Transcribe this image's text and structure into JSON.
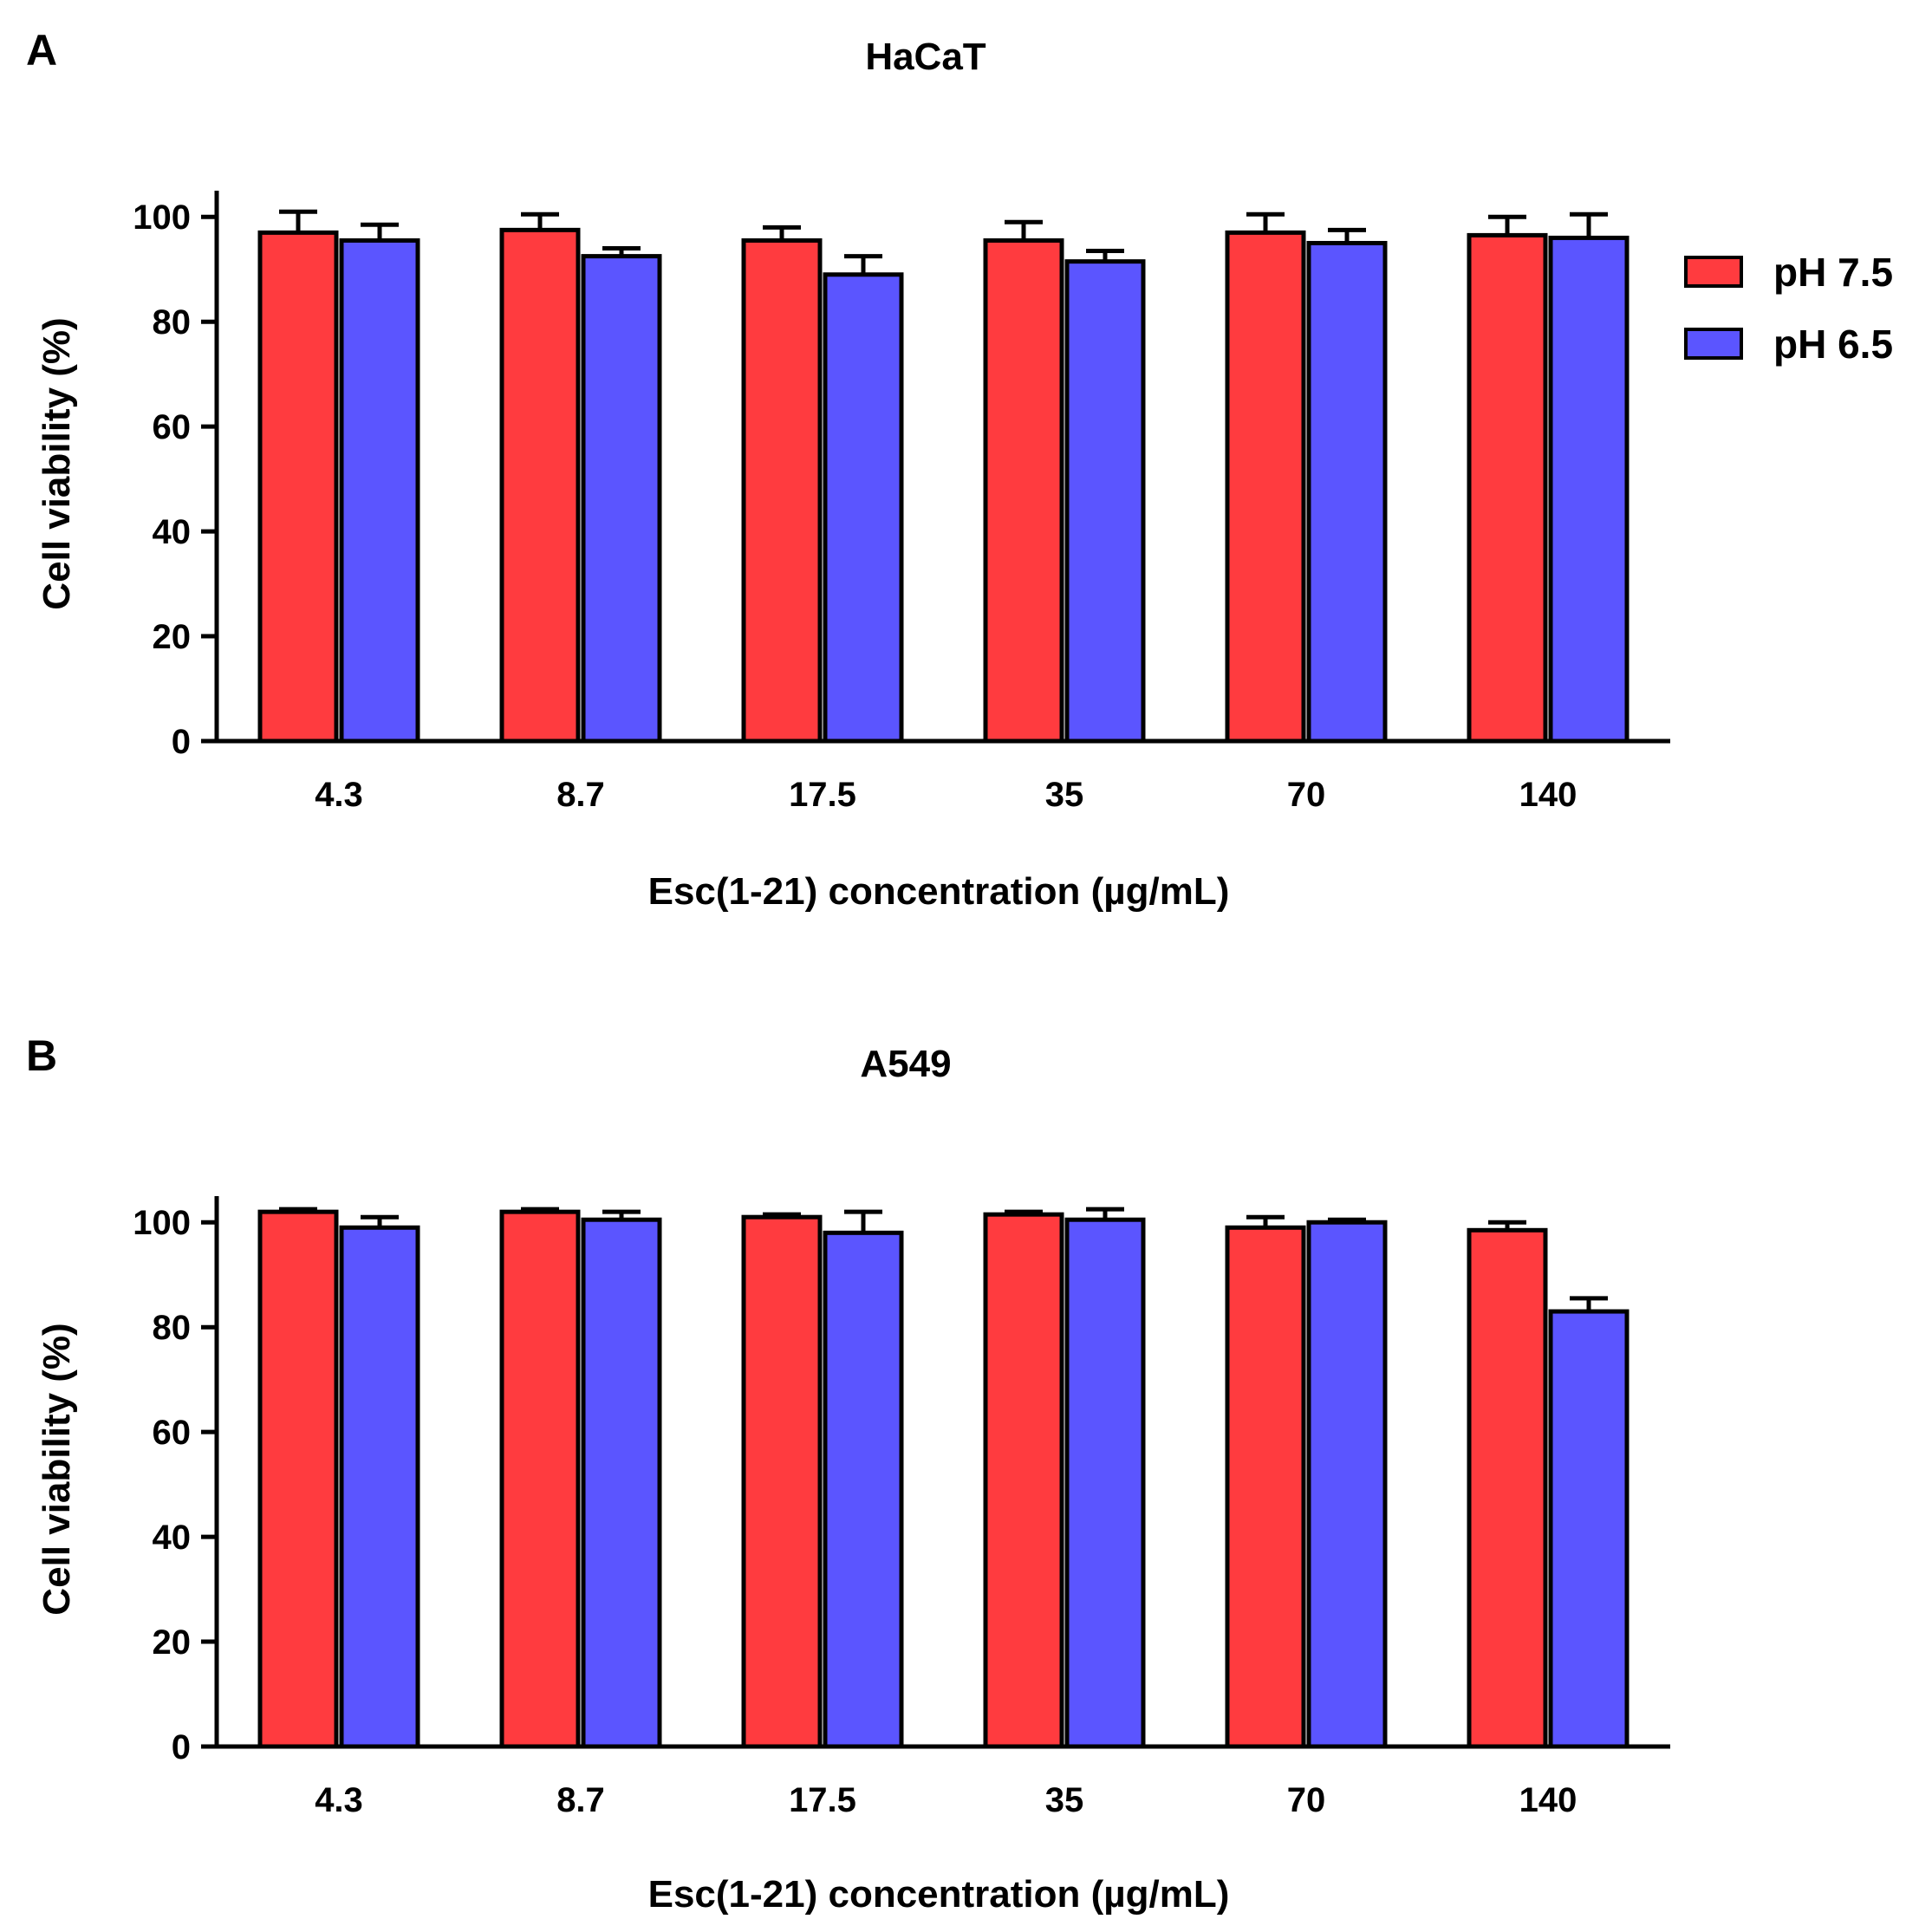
{
  "legend": [
    {
      "name": "pH 7.5",
      "color": "#ff3b3f"
    },
    {
      "name": "pH 6.5",
      "color": "#5b55ff"
    }
  ],
  "chart_data": [
    {
      "type": "bar",
      "panel": "A",
      "title": "HaCaT",
      "xlabel": "Esc(1-21) concentration (µg/mL)",
      "ylabel": "Cell viability (%)",
      "ylim": [
        0,
        105
      ],
      "yticks": [
        0,
        20,
        40,
        60,
        80,
        100
      ],
      "categories": [
        "4.3",
        "8.7",
        "17.5",
        "35",
        "70",
        "140"
      ],
      "series": [
        {
          "name": "pH 7.5",
          "values": [
            97,
            97.5,
            95.5,
            95.5,
            97,
            96.5
          ],
          "errors": [
            4,
            3,
            2.5,
            3.5,
            3.5,
            3.5
          ]
        },
        {
          "name": "pH 6.5",
          "values": [
            95.5,
            92.5,
            89,
            91.5,
            95,
            96
          ],
          "errors": [
            3,
            1.5,
            3.5,
            2,
            2.5,
            4.5
          ]
        }
      ]
    },
    {
      "type": "bar",
      "panel": "B",
      "title": "A549",
      "xlabel": "Esc(1-21) concentration (µg/mL)",
      "ylabel": "Cell viability (%)",
      "ylim": [
        0,
        105
      ],
      "yticks": [
        0,
        20,
        40,
        60,
        80,
        100
      ],
      "categories": [
        "4.3",
        "8.7",
        "17.5",
        "35",
        "70",
        "140"
      ],
      "series": [
        {
          "name": "pH 7.5",
          "values": [
            102,
            102,
            101,
            101.5,
            99,
            98.5
          ],
          "errors": [
            0.5,
            0.5,
            0.5,
            0.5,
            2,
            1.5
          ]
        },
        {
          "name": "pH 6.5",
          "values": [
            99,
            100.5,
            98,
            100.5,
            100,
            83
          ],
          "errors": [
            2,
            1.5,
            4,
            2,
            0.5,
            2.5
          ]
        }
      ]
    }
  ]
}
